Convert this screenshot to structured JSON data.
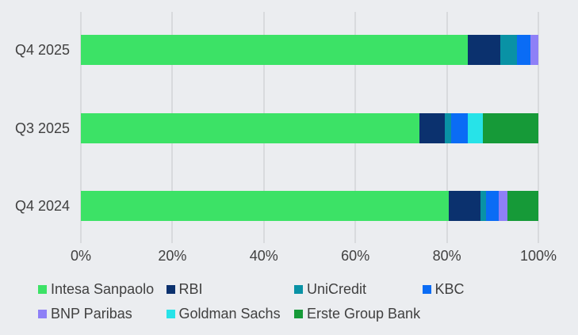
{
  "colors": {
    "background": "#ebedf0",
    "gridline": "#d8dadd",
    "text": "#404040"
  },
  "chart_data": {
    "type": "bar",
    "orientation": "horizontal",
    "stacked": true,
    "unit": "percent",
    "grid": true,
    "legend_position": "bottom",
    "categories": [
      "Q4 2025",
      "Q3 2025",
      "Q4 2024"
    ],
    "series": [
      {
        "name": "Intesa Sanpaolo",
        "color": "#3ce266",
        "values": [
          84.5,
          74.0,
          80.4
        ]
      },
      {
        "name": "RBI",
        "color": "#0b316e",
        "values": [
          7.2,
          5.6,
          7.0
        ]
      },
      {
        "name": "UniCredit",
        "color": "#0992a5",
        "values": [
          3.7,
          1.3,
          1.2
        ]
      },
      {
        "name": "KBC",
        "color": "#0a6cf5",
        "values": [
          2.9,
          3.6,
          2.7
        ]
      },
      {
        "name": "BNP Paribas",
        "color": "#8e80f7",
        "values": [
          1.7,
          0,
          1.9
        ]
      },
      {
        "name": "Goldman Sachs",
        "color": "#27e3e8",
        "values": [
          0,
          3.4,
          0
        ]
      },
      {
        "name": "Erste Group Bank",
        "color": "#169a38",
        "values": [
          0,
          12.1,
          6.8
        ]
      }
    ],
    "xlim": [
      0,
      100
    ],
    "x_ticks": [
      {
        "value": 0,
        "label": "0%"
      },
      {
        "value": 20,
        "label": "20%"
      },
      {
        "value": 40,
        "label": "40%"
      },
      {
        "value": 60,
        "label": "60%"
      },
      {
        "value": 80,
        "label": "80%"
      },
      {
        "value": 100,
        "label": "100%"
      }
    ],
    "legend_rows": [
      [
        "Intesa Sanpaolo",
        "RBI",
        "UniCredit",
        "KBC"
      ],
      [
        "BNP Paribas",
        "Goldman Sachs",
        "Erste Group Bank"
      ]
    ]
  }
}
